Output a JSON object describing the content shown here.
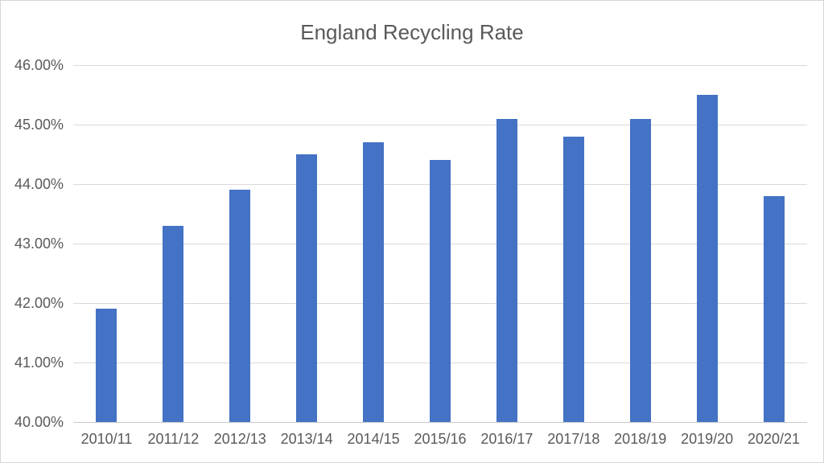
{
  "chart_data": {
    "type": "bar",
    "title": "England Recycling Rate",
    "categories": [
      "2010/11",
      "2011/12",
      "2012/13",
      "2013/14",
      "2014/15",
      "2015/16",
      "2016/17",
      "2017/18",
      "2018/19",
      "2019/20",
      "2020/21"
    ],
    "values": [
      41.9,
      43.3,
      43.9,
      44.5,
      44.7,
      44.4,
      45.1,
      44.8,
      45.1,
      45.5,
      43.8
    ],
    "y_tick_labels": [
      "46.00%",
      "45.00%",
      "44.00%",
      "43.00%",
      "42.00%",
      "41.00%",
      "40.00%"
    ],
    "ylim": [
      40,
      46
    ],
    "y_tick_step": 1,
    "xlabel": "",
    "ylabel": "",
    "grid": true,
    "legend": false,
    "colors": {
      "bar": "#4472c4",
      "text": "#595959",
      "gridline": "#d9d9d9",
      "axis_line": "#c9c9c9",
      "background": "#ffffff"
    }
  }
}
